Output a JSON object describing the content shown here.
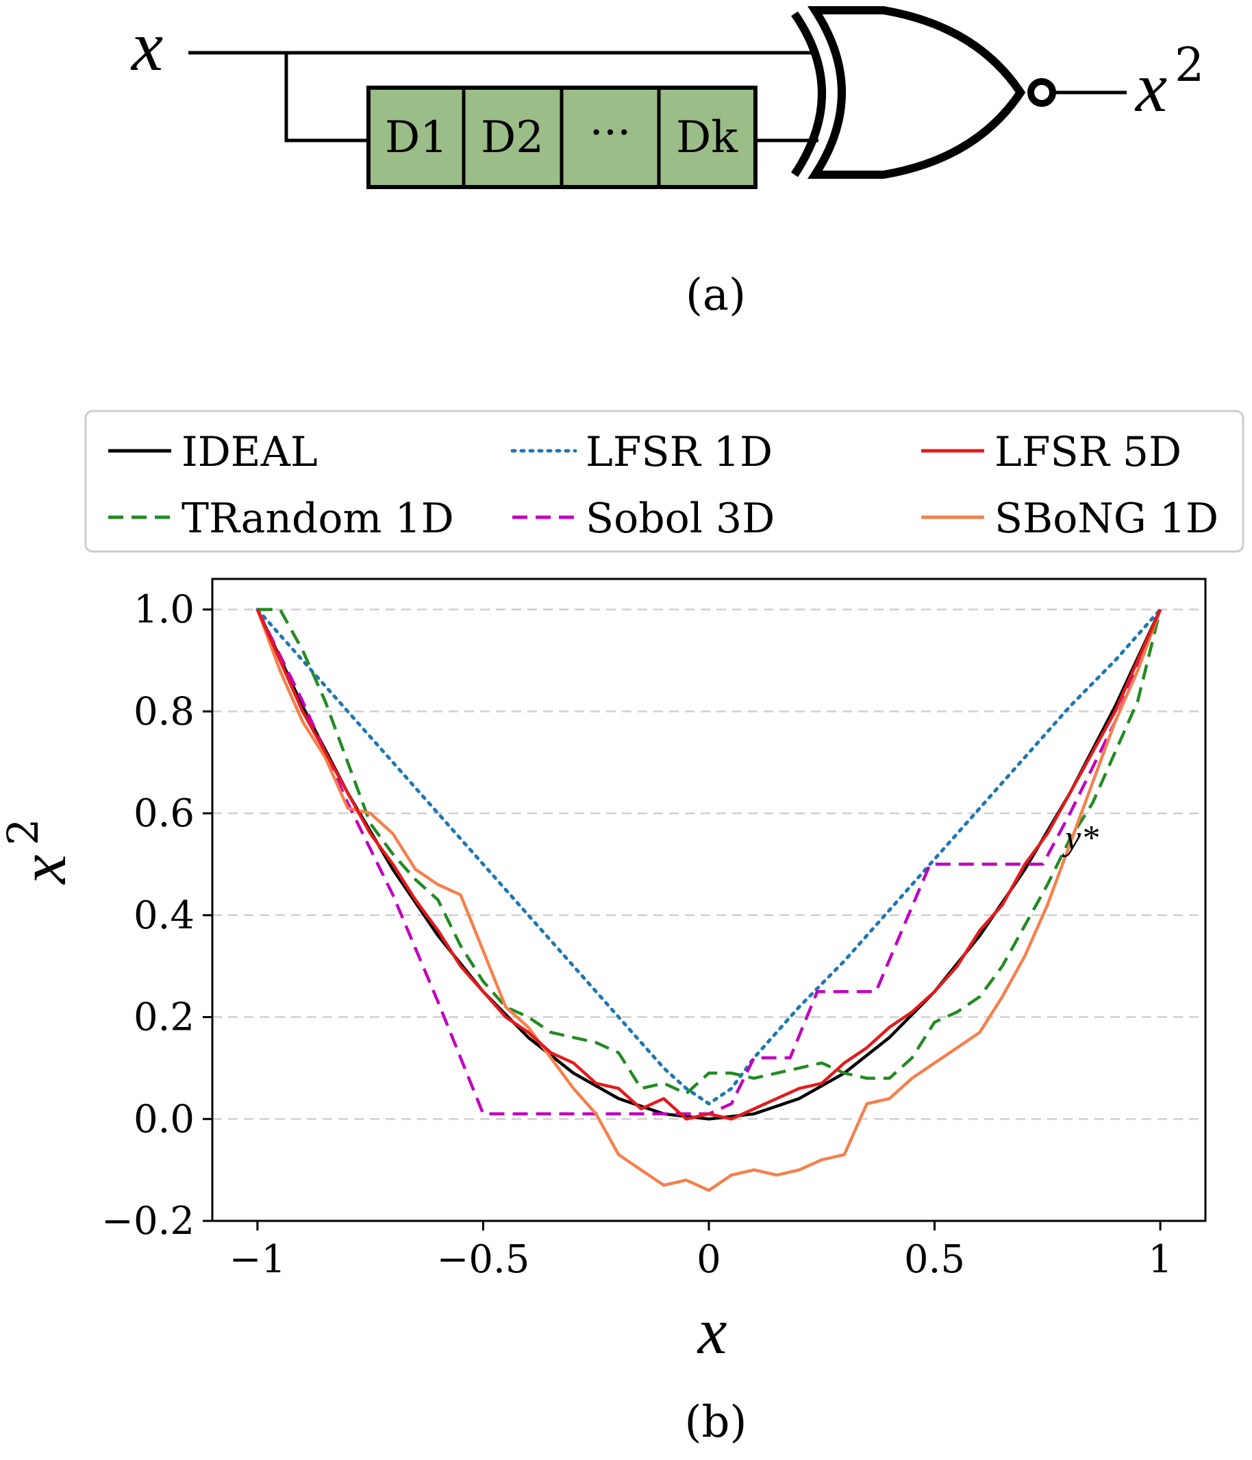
{
  "circuit": {
    "input_label": "x",
    "output_label": "x",
    "output_exponent": "2",
    "delay_cells": [
      "D1",
      "D2",
      "···",
      "Dk"
    ],
    "gate_type": "XNOR",
    "cell_fill_color": "#9bbd88",
    "caption": "(a)"
  },
  "chart_data": {
    "type": "line",
    "caption": "(b)",
    "xlabel": "x",
    "ylabel": "x",
    "ylabel_exponent": "2",
    "xlim": [
      -1.1,
      1.1
    ],
    "ylim": [
      -0.2,
      1.06
    ],
    "xticks": [
      {
        "value": -1,
        "label": "−1"
      },
      {
        "value": -0.5,
        "label": "−0.5"
      },
      {
        "value": 0,
        "label": "0"
      },
      {
        "value": 0.5,
        "label": "0.5"
      },
      {
        "value": 1,
        "label": "1"
      }
    ],
    "yticks": [
      {
        "value": -0.2,
        "label": "−0.2"
      },
      {
        "value": 0.0,
        "label": "0.0"
      },
      {
        "value": 0.2,
        "label": "0.2"
      },
      {
        "value": 0.4,
        "label": "0.4"
      },
      {
        "value": 0.6,
        "label": "0.6"
      },
      {
        "value": 0.8,
        "label": "0.8"
      },
      {
        "value": 1.0,
        "label": "1.0"
      }
    ],
    "grid": "horizontal-dashed",
    "legend_position": "top",
    "annotation": "y*",
    "series": [
      {
        "name": "IDEAL",
        "color": "#000000",
        "style": "solid",
        "points": [
          [
            -1,
            1
          ],
          [
            -0.9,
            0.81
          ],
          [
            -0.8,
            0.64
          ],
          [
            -0.7,
            0.49
          ],
          [
            -0.6,
            0.36
          ],
          [
            -0.5,
            0.25
          ],
          [
            -0.4,
            0.16
          ],
          [
            -0.3,
            0.09
          ],
          [
            -0.2,
            0.04
          ],
          [
            -0.1,
            0.01
          ],
          [
            0,
            0
          ],
          [
            0.1,
            0.01
          ],
          [
            0.2,
            0.04
          ],
          [
            0.3,
            0.09
          ],
          [
            0.4,
            0.16
          ],
          [
            0.5,
            0.25
          ],
          [
            0.6,
            0.36
          ],
          [
            0.7,
            0.49
          ],
          [
            0.8,
            0.64
          ],
          [
            0.9,
            0.81
          ],
          [
            1,
            1
          ]
        ]
      },
      {
        "name": "LFSR 1D",
        "color": "#1f77b4",
        "style": "dotted",
        "points": [
          [
            -1,
            1
          ],
          [
            -0.8,
            0.8
          ],
          [
            -0.6,
            0.6
          ],
          [
            -0.4,
            0.4
          ],
          [
            -0.2,
            0.2
          ],
          [
            -0.1,
            0.1
          ],
          [
            -0.05,
            0.06
          ],
          [
            0,
            0.03
          ],
          [
            0.05,
            0.06
          ],
          [
            0.1,
            0.12
          ],
          [
            0.2,
            0.22
          ],
          [
            0.3,
            0.31
          ],
          [
            0.4,
            0.41
          ],
          [
            0.5,
            0.51
          ],
          [
            0.6,
            0.61
          ],
          [
            0.7,
            0.71
          ],
          [
            0.8,
            0.81
          ],
          [
            0.9,
            0.9
          ],
          [
            1,
            1
          ]
        ]
      },
      {
        "name": "LFSR 5D",
        "color": "#e41a1c",
        "style": "solid",
        "points": [
          [
            -1,
            1
          ],
          [
            -0.95,
            0.9
          ],
          [
            -0.9,
            0.8
          ],
          [
            -0.85,
            0.72
          ],
          [
            -0.8,
            0.64
          ],
          [
            -0.75,
            0.56
          ],
          [
            -0.7,
            0.5
          ],
          [
            -0.65,
            0.43
          ],
          [
            -0.6,
            0.37
          ],
          [
            -0.55,
            0.3
          ],
          [
            -0.5,
            0.25
          ],
          [
            -0.45,
            0.2
          ],
          [
            -0.4,
            0.17
          ],
          [
            -0.35,
            0.13
          ],
          [
            -0.3,
            0.11
          ],
          [
            -0.25,
            0.07
          ],
          [
            -0.2,
            0.06
          ],
          [
            -0.15,
            0.02
          ],
          [
            -0.1,
            0.04
          ],
          [
            -0.05,
            0.0
          ],
          [
            0,
            0.01
          ],
          [
            0.05,
            0.0
          ],
          [
            0.1,
            0.02
          ],
          [
            0.15,
            0.04
          ],
          [
            0.2,
            0.06
          ],
          [
            0.25,
            0.07
          ],
          [
            0.3,
            0.11
          ],
          [
            0.35,
            0.14
          ],
          [
            0.4,
            0.18
          ],
          [
            0.45,
            0.21
          ],
          [
            0.5,
            0.25
          ],
          [
            0.55,
            0.3
          ],
          [
            0.6,
            0.37
          ],
          [
            0.65,
            0.42
          ],
          [
            0.7,
            0.5
          ],
          [
            0.75,
            0.56
          ],
          [
            0.8,
            0.64
          ],
          [
            0.85,
            0.72
          ],
          [
            0.9,
            0.8
          ],
          [
            0.95,
            0.9
          ],
          [
            1,
            1
          ]
        ]
      },
      {
        "name": "TRandom 1D",
        "color": "#228b22",
        "style": "dashed",
        "points": [
          [
            -1,
            1
          ],
          [
            -0.95,
            1.0
          ],
          [
            -0.9,
            0.92
          ],
          [
            -0.85,
            0.82
          ],
          [
            -0.8,
            0.7
          ],
          [
            -0.75,
            0.58
          ],
          [
            -0.7,
            0.52
          ],
          [
            -0.65,
            0.47
          ],
          [
            -0.6,
            0.43
          ],
          [
            -0.55,
            0.34
          ],
          [
            -0.5,
            0.27
          ],
          [
            -0.45,
            0.22
          ],
          [
            -0.4,
            0.2
          ],
          [
            -0.35,
            0.17
          ],
          [
            -0.3,
            0.16
          ],
          [
            -0.25,
            0.15
          ],
          [
            -0.2,
            0.13
          ],
          [
            -0.15,
            0.06
          ],
          [
            -0.1,
            0.07
          ],
          [
            -0.05,
            0.05
          ],
          [
            0,
            0.09
          ],
          [
            0.05,
            0.09
          ],
          [
            0.1,
            0.08
          ],
          [
            0.15,
            0.09
          ],
          [
            0.2,
            0.1
          ],
          [
            0.25,
            0.11
          ],
          [
            0.3,
            0.09
          ],
          [
            0.35,
            0.08
          ],
          [
            0.4,
            0.08
          ],
          [
            0.45,
            0.12
          ],
          [
            0.5,
            0.19
          ],
          [
            0.55,
            0.21
          ],
          [
            0.6,
            0.24
          ],
          [
            0.65,
            0.3
          ],
          [
            0.7,
            0.38
          ],
          [
            0.75,
            0.46
          ],
          [
            0.8,
            0.55
          ],
          [
            0.85,
            0.62
          ],
          [
            0.9,
            0.72
          ],
          [
            0.95,
            0.82
          ],
          [
            1,
            1
          ]
        ]
      },
      {
        "name": "Sobol 3D",
        "color": "#c000c0",
        "style": "dashed",
        "points": [
          [
            -1,
            1
          ],
          [
            -0.9,
            0.82
          ],
          [
            -0.8,
            0.62
          ],
          [
            -0.7,
            0.44
          ],
          [
            -0.6,
            0.23
          ],
          [
            -0.5,
            0.01
          ],
          [
            -0.4,
            0.01
          ],
          [
            -0.3,
            0.01
          ],
          [
            -0.2,
            0.01
          ],
          [
            -0.1,
            0.01
          ],
          [
            0,
            0.01
          ],
          [
            0.05,
            0.03
          ],
          [
            0.1,
            0.12
          ],
          [
            0.18,
            0.12
          ],
          [
            0.24,
            0.25
          ],
          [
            0.37,
            0.25
          ],
          [
            0.49,
            0.5
          ],
          [
            0.74,
            0.5
          ],
          [
            0.8,
            0.6
          ],
          [
            0.9,
            0.78
          ],
          [
            1,
            1
          ]
        ]
      },
      {
        "name": "SBoNG 1D",
        "color": "#f5804c",
        "style": "solid",
        "points": [
          [
            -1,
            1
          ],
          [
            -0.95,
            0.88
          ],
          [
            -0.9,
            0.78
          ],
          [
            -0.85,
            0.71
          ],
          [
            -0.8,
            0.61
          ],
          [
            -0.75,
            0.6
          ],
          [
            -0.7,
            0.56
          ],
          [
            -0.65,
            0.49
          ],
          [
            -0.6,
            0.46
          ],
          [
            -0.55,
            0.44
          ],
          [
            -0.5,
            0.33
          ],
          [
            -0.45,
            0.22
          ],
          [
            -0.4,
            0.18
          ],
          [
            -0.35,
            0.12
          ],
          [
            -0.3,
            0.06
          ],
          [
            -0.25,
            0.01
          ],
          [
            -0.2,
            -0.07
          ],
          [
            -0.15,
            -0.1
          ],
          [
            -0.1,
            -0.13
          ],
          [
            -0.05,
            -0.12
          ],
          [
            0,
            -0.14
          ],
          [
            0.05,
            -0.11
          ],
          [
            0.1,
            -0.1
          ],
          [
            0.15,
            -0.11
          ],
          [
            0.2,
            -0.1
          ],
          [
            0.25,
            -0.08
          ],
          [
            0.3,
            -0.07
          ],
          [
            0.35,
            0.03
          ],
          [
            0.4,
            0.04
          ],
          [
            0.45,
            0.08
          ],
          [
            0.5,
            0.11
          ],
          [
            0.55,
            0.14
          ],
          [
            0.6,
            0.17
          ],
          [
            0.65,
            0.24
          ],
          [
            0.7,
            0.32
          ],
          [
            0.75,
            0.42
          ],
          [
            0.8,
            0.54
          ],
          [
            0.85,
            0.66
          ],
          [
            0.9,
            0.78
          ],
          [
            0.95,
            0.88
          ],
          [
            1,
            1
          ]
        ]
      }
    ],
    "legend": [
      {
        "name": "IDEAL",
        "color": "#000000",
        "style": "solid"
      },
      {
        "name": "LFSR 1D",
        "color": "#1f77b4",
        "style": "dotted"
      },
      {
        "name": "LFSR 5D",
        "color": "#e41a1c",
        "style": "solid"
      },
      {
        "name": "TRandom 1D",
        "color": "#228b22",
        "style": "dashed"
      },
      {
        "name": "Sobol 3D",
        "color": "#c000c0",
        "style": "dashed"
      },
      {
        "name": "SBoNG 1D",
        "color": "#f5804c",
        "style": "solid"
      }
    ]
  }
}
